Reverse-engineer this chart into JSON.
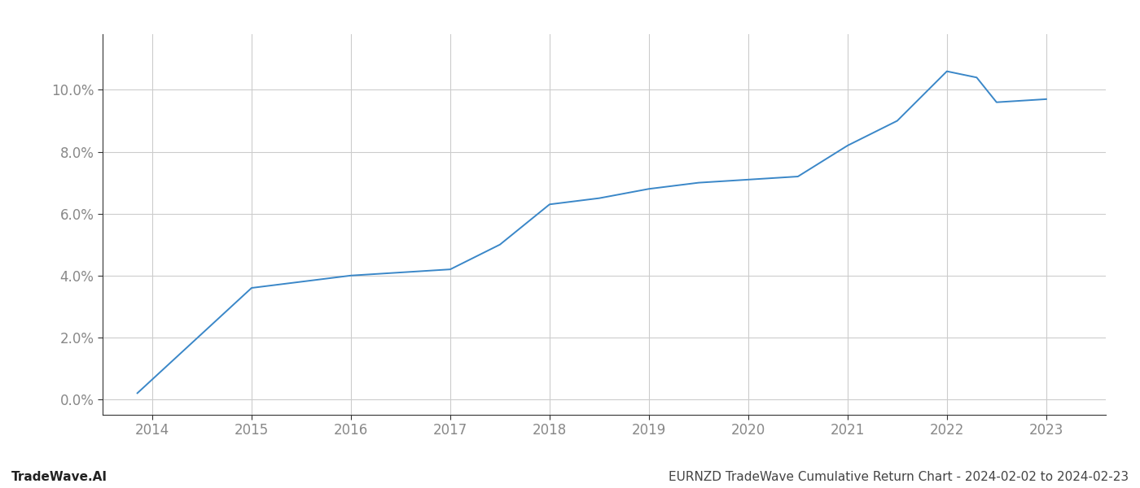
{
  "x_years": [
    2013.85,
    2015.0,
    2015.5,
    2016.0,
    2017.0,
    2017.5,
    2018.0,
    2018.5,
    2019.0,
    2019.5,
    2020.0,
    2020.5,
    2021.0,
    2021.5,
    2022.0,
    2022.3,
    2022.5,
    2023.0
  ],
  "y_values": [
    0.002,
    0.036,
    0.038,
    0.04,
    0.042,
    0.05,
    0.063,
    0.065,
    0.068,
    0.07,
    0.071,
    0.072,
    0.082,
    0.09,
    0.106,
    0.104,
    0.096,
    0.097
  ],
  "line_color": "#3a87c8",
  "line_width": 1.4,
  "footer_left": "TradeWave.AI",
  "footer_right": "EURNZD TradeWave Cumulative Return Chart - 2024-02-02 to 2024-02-23",
  "xlim": [
    2013.5,
    2023.6
  ],
  "ylim": [
    -0.005,
    0.118
  ],
  "yticks": [
    0.0,
    0.02,
    0.04,
    0.06,
    0.08,
    0.1
  ],
  "xticks": [
    2014,
    2015,
    2016,
    2017,
    2018,
    2019,
    2020,
    2021,
    2022,
    2023
  ],
  "background_color": "#ffffff",
  "grid_color": "#cccccc",
  "tick_label_color": "#888888",
  "footer_fontsize": 11,
  "axis_fontsize": 12,
  "spine_color": "#333333"
}
